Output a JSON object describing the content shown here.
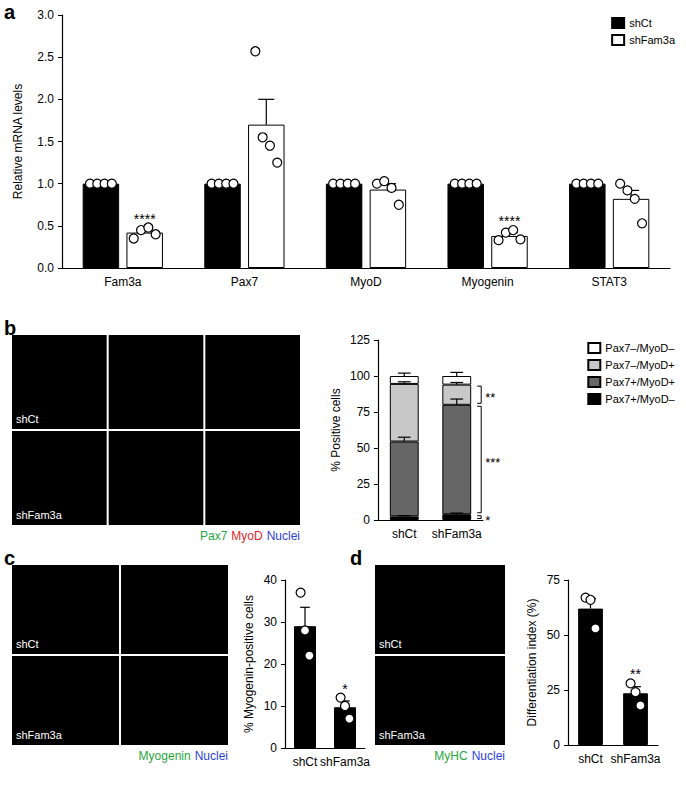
{
  "chart_data": [
    {
      "panel": "a",
      "type": "bar",
      "y_label": "Relative mRNA levels",
      "categories": [
        "Fam3a",
        "Pax7",
        "MyoD",
        "Myogenin",
        "STAT3"
      ],
      "series": [
        {
          "name": "shCt",
          "color": "#000000",
          "values": [
            1,
            1,
            1,
            1,
            1
          ],
          "errors": [
            0,
            0,
            0,
            0,
            0
          ],
          "points": [
            [
              1,
              1,
              1,
              1
            ],
            [
              1,
              1,
              1,
              1
            ],
            [
              1,
              1,
              1,
              1
            ],
            [
              1,
              1,
              1,
              1
            ],
            [
              1,
              1,
              1,
              1
            ]
          ]
        },
        {
          "name": "shFam3a",
          "color": "#ffffff",
          "values": [
            0.42,
            1.7,
            0.93,
            0.38,
            0.82
          ],
          "errors": [
            0.04,
            0.3,
            0.07,
            0.04,
            0.1
          ],
          "points": [
            [
              0.35,
              0.45,
              0.48,
              0.4
            ],
            [
              2.57,
              1.55,
              1.45,
              1.25
            ],
            [
              1.0,
              1.03,
              0.95,
              0.75
            ],
            [
              0.33,
              0.42,
              0.45,
              0.34
            ],
            [
              1.0,
              0.92,
              0.82,
              0.53
            ]
          ]
        }
      ],
      "ylim": [
        0,
        3
      ],
      "yticks": [
        {
          "value": 0,
          "label": "0.0"
        },
        0.5,
        {
          "value": 1,
          "label": "1.0"
        },
        1.5,
        {
          "value": 2,
          "label": "2.0"
        },
        2.5,
        {
          "value": 3,
          "label": "3.0"
        }
      ],
      "annotations": [
        {
          "category": "Fam3a",
          "series": "shFam3a",
          "text": "****"
        },
        {
          "category": "Myogenin",
          "series": "shFam3a",
          "text": "****"
        }
      ],
      "legend": "top-right",
      "grid": false
    },
    {
      "panel": "b",
      "type": "bar",
      "stacked": true,
      "y_label": "% Positive cells",
      "categories": [
        "shCt",
        "shFam3a"
      ],
      "series": [
        {
          "name": "Pax7+/MyoD–",
          "color": "#000000",
          "values": [
            2.5,
            4
          ],
          "errors": [
            0.5,
            0.8
          ]
        },
        {
          "name": "Pax7+/MyoD+",
          "color": "#666666",
          "values": [
            52,
            76
          ],
          "errors": [
            3,
            4
          ]
        },
        {
          "name": "Pax7–/MyoD+",
          "color": "#c8c8c8",
          "values": [
            40,
            14
          ],
          "errors": [
            1.5,
            1.5
          ]
        },
        {
          "name": "Pax7–/MyoD–",
          "color": "#ffffff",
          "values": [
            5.5,
            6
          ],
          "errors": [
            2,
            2.5
          ]
        }
      ],
      "ylim": [
        0,
        125
      ],
      "yticks": [
        0,
        25,
        50,
        75,
        100,
        125
      ],
      "annotations": [
        {
          "category": "shFam3a",
          "series": "Pax7–/MyoD+",
          "text": "**"
        },
        {
          "category": "shFam3a",
          "series": "Pax7+/MyoD+",
          "text": "***"
        },
        {
          "category": "shFam3a",
          "series": "Pax7+/MyoD–",
          "text": "*"
        }
      ],
      "legend": "top-right",
      "grid": false
    },
    {
      "panel": "c",
      "type": "bar",
      "y_label": "% Myogenin-positive cells",
      "categories": [
        "shCt",
        "shFam3a"
      ],
      "values": [
        29,
        9.7
      ],
      "errors": [
        4.5,
        1.5
      ],
      "points": [
        [
          37,
          28,
          22
        ],
        [
          12,
          10,
          7
        ]
      ],
      "color": "#000000",
      "ylim": [
        0,
        40
      ],
      "yticks": [
        0,
        10,
        20,
        30,
        40
      ],
      "annotations": [
        {
          "category": "shFam3a",
          "text": "*"
        }
      ],
      "grid": false
    },
    {
      "panel": "d",
      "type": "bar",
      "y_label": "Differentiation index (%)",
      "categories": [
        "shCt",
        "shFam3a"
      ],
      "values": [
        62,
        23.5
      ],
      "errors": [
        4.5,
        3
      ],
      "points": [
        [
          67,
          66,
          53
        ],
        [
          28,
          24,
          18
        ]
      ],
      "color": "#000000",
      "ylim": [
        0,
        75
      ],
      "yticks": [
        0,
        25,
        50,
        75
      ],
      "annotations": [
        {
          "category": "shFam3a",
          "text": "**"
        }
      ],
      "grid": false
    }
  ],
  "images": [
    {
      "panel": "b",
      "rows": [
        "shCt",
        "shFam3a"
      ],
      "channels": [
        {
          "text": "Pax7",
          "color": "#1fa83a"
        },
        {
          "text": "MyoD",
          "color": "#e0262a"
        },
        {
          "text": "Nuclei",
          "color": "#2b3fd6"
        }
      ]
    },
    {
      "panel": "c",
      "rows": [
        "shCt",
        "shFam3a"
      ],
      "channels": [
        {
          "text": "Myogenin",
          "color": "#1fa83a"
        },
        {
          "text": "Nuclei",
          "color": "#2b3fd6"
        }
      ]
    },
    {
      "panel": "d",
      "rows": [
        "shCt",
        "shFam3a"
      ],
      "merged": true,
      "channels": [
        {
          "text": "MyHC",
          "color": "#1fa83a"
        },
        {
          "text": "Nuclei",
          "color": "#2b3fd6"
        }
      ]
    }
  ]
}
